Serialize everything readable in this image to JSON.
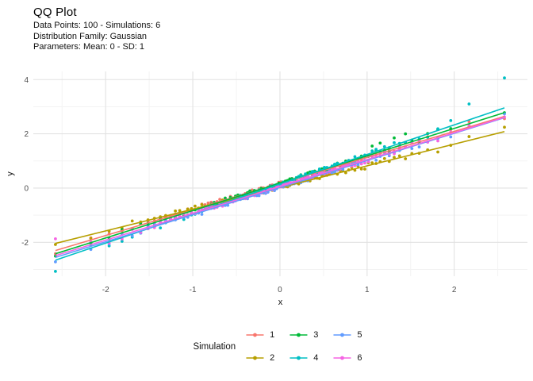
{
  "header": {
    "title": "QQ Plot",
    "subtitle_line1": "Data Points: 100 - Simulations: 6",
    "subtitle_line2": "Distribution Family: Gaussian",
    "subtitle_line3": "Parameters: Mean: 0 - SD: 1"
  },
  "chart_data": {
    "type": "scatter",
    "subtype": "qq-plot",
    "title": "QQ Plot",
    "subtitle": [
      "Data Points: 100 - Simulations: 6",
      "Distribution Family: Gaussian",
      "Parameters: Mean: 0 - SD: 1"
    ],
    "xlabel": "x",
    "ylabel": "y",
    "xlim": [
      -2.83,
      2.84
    ],
    "ylim": [
      -3.25,
      4.3
    ],
    "x_major_ticks": [
      -2,
      -1,
      0,
      1,
      2
    ],
    "y_major_ticks": [
      4,
      2,
      0,
      -2
    ],
    "x_minor_ticks": [
      -2.5,
      -1.5,
      -0.5,
      0.5,
      1.5,
      2.5
    ],
    "y_minor_ticks": [
      3,
      1,
      -1,
      -3
    ],
    "grid": "major+minor, no axis lines, no tick marks, white background",
    "legend_title": "Simulation",
    "legend_position": "bottom",
    "n_points_per_series": 100,
    "theoretical_quantiles": [
      -2.576,
      -2.17,
      -1.96,
      -1.812,
      -1.695,
      -1.598,
      -1.514,
      -1.44,
      -1.372,
      -1.311,
      -1.254,
      -1.2,
      -1.15,
      -1.103,
      -1.058,
      -1.015,
      -0.974,
      -0.935,
      -0.896,
      -0.86,
      -0.824,
      -0.789,
      -0.755,
      -0.722,
      -0.69,
      -0.659,
      -0.628,
      -0.598,
      -0.568,
      -0.539,
      -0.51,
      -0.482,
      -0.454,
      -0.426,
      -0.399,
      -0.372,
      -0.345,
      -0.319,
      -0.292,
      -0.266,
      -0.24,
      -0.215,
      -0.189,
      -0.164,
      -0.138,
      -0.113,
      -0.088,
      -0.063,
      -0.038,
      -0.013,
      0.013,
      0.038,
      0.063,
      0.088,
      0.113,
      0.138,
      0.164,
      0.189,
      0.215,
      0.24,
      0.266,
      0.292,
      0.319,
      0.345,
      0.372,
      0.399,
      0.426,
      0.454,
      0.482,
      0.51,
      0.539,
      0.568,
      0.598,
      0.628,
      0.659,
      0.69,
      0.722,
      0.755,
      0.789,
      0.824,
      0.86,
      0.896,
      0.935,
      0.974,
      1.015,
      1.058,
      1.103,
      1.15,
      1.2,
      1.254,
      1.311,
      1.372,
      1.44,
      1.514,
      1.598,
      1.695,
      1.812,
      1.96,
      2.17,
      2.576
    ],
    "series": [
      {
        "name": "1",
        "color": "#F8766D",
        "line": {
          "slope": 0.96,
          "intercept": 0.17,
          "x_start": -2.576,
          "x_end": 2.576
        },
        "jitter": 0.1,
        "outliers": [
          {
            "i": 98,
            "x": 2.17,
            "y": 2.45
          }
        ]
      },
      {
        "name": "2",
        "color": "#B79F00",
        "line": {
          "slope": 0.8,
          "intercept": 0.02,
          "x_start": -2.576,
          "x_end": 2.576
        },
        "jitter": 0.1,
        "outliers": [
          {
            "i": 0,
            "x": -2.576,
            "y": -2.08
          }
        ]
      },
      {
        "name": "3",
        "color": "#00BA38",
        "line": {
          "slope": 1.01,
          "intercept": 0.18,
          "x_start": -2.576,
          "x_end": 2.576
        },
        "jitter": 0.1,
        "outliers": [
          {
            "i": 85,
            "x": 1.058,
            "y": 1.55
          },
          {
            "i": 87,
            "x": 1.15,
            "y": 1.66
          },
          {
            "i": 90,
            "x": 1.311,
            "y": 1.85
          },
          {
            "i": 92,
            "x": 1.44,
            "y": 2.0
          }
        ]
      },
      {
        "name": "4",
        "color": "#00BFC4",
        "line": {
          "slope": 1.09,
          "intercept": 0.15,
          "x_start": -2.576,
          "x_end": 2.576
        },
        "jitter": 0.1,
        "outliers": [
          {
            "i": 0,
            "x": -2.576,
            "y": -3.07
          },
          {
            "i": 2,
            "x": -1.96,
            "y": -2.13
          },
          {
            "i": 97,
            "x": 1.96,
            "y": 2.49
          },
          {
            "i": 98,
            "x": 2.17,
            "y": 3.1
          },
          {
            "i": 99,
            "x": 2.576,
            "y": 4.06
          }
        ]
      },
      {
        "name": "5",
        "color": "#619CFF",
        "line": {
          "slope": 1.0,
          "intercept": 0.02,
          "x_start": -2.576,
          "x_end": 2.576
        },
        "jitter": 0.1,
        "outliers": []
      },
      {
        "name": "6",
        "color": "#F564E3",
        "line": {
          "slope": 0.99,
          "intercept": 0.06,
          "x_start": -2.576,
          "x_end": 2.576
        },
        "jitter": 0.1,
        "outliers": [
          {
            "i": 0,
            "x": -2.576,
            "y": -1.87
          }
        ]
      }
    ]
  },
  "style_colors": {
    "background": "#FFFFFF",
    "grid_major": "#E2E2E2",
    "grid_minor": "#F3F3F3",
    "tick_label": "#4D4D4D",
    "text": "#111111"
  }
}
